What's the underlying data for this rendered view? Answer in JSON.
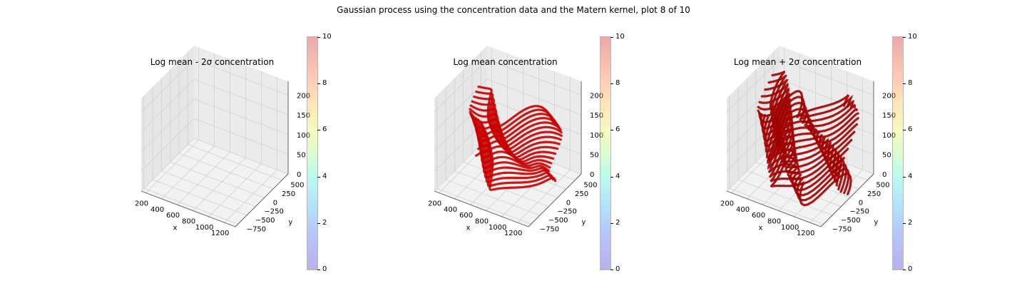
{
  "figure_title": "Gaussian process using the  concentration data and the Matern kernel, plot 8 of 10",
  "colors": {
    "surface": "#c80000",
    "surface_dark": "#8b0000",
    "pane": "#f0f0f0",
    "grid": "#d0d0d0"
  },
  "chart_data": [
    {
      "type": "scatter3d",
      "title": "Log mean - 2σ concentration",
      "xlabel": "x",
      "ylabel": "y",
      "zlabel": "",
      "xticks": [
        "200",
        "400",
        "600",
        "800",
        "1000",
        "1200"
      ],
      "yticks": [
        "−750",
        "−500",
        "−250",
        "0",
        "250",
        "500"
      ],
      "zticks": [
        "0",
        "50",
        "100",
        "150",
        "200"
      ],
      "colorbar_ticks": [
        "0",
        "2",
        "4",
        "6",
        "8",
        "10"
      ],
      "colorbar_range": [
        0,
        10
      ],
      "surfaces": []
    },
    {
      "type": "scatter3d",
      "title": "Log mean concentration",
      "xlabel": "x",
      "ylabel": "y",
      "zlabel": "",
      "xticks": [
        "200",
        "400",
        "600",
        "800",
        "1000",
        "1200"
      ],
      "yticks": [
        "−750",
        "−500",
        "−250",
        "0",
        "250",
        "500"
      ],
      "zticks": [
        "0",
        "50",
        "100",
        "150",
        "200"
      ],
      "colorbar_ticks": [
        "0",
        "2",
        "4",
        "6",
        "8",
        "10"
      ],
      "colorbar_range": [
        0,
        10
      ],
      "surfaces": [
        {
          "name": "level-band",
          "z_range": [
            10,
            185
          ],
          "amplitude": 0.12,
          "waves": 3,
          "color": "#c80000"
        }
      ]
    },
    {
      "type": "scatter3d",
      "title": "Log mean + 2σ concentration",
      "xlabel": "x",
      "ylabel": "y",
      "zlabel": "",
      "xticks": [
        "200",
        "400",
        "600",
        "800",
        "1000",
        "1200"
      ],
      "yticks": [
        "−750",
        "−500",
        "−250",
        "0",
        "250",
        "500"
      ],
      "zticks": [
        "0",
        "50",
        "100",
        "150",
        "200"
      ],
      "colorbar_ticks": [
        "0",
        "2",
        "4",
        "6",
        "8",
        "10"
      ],
      "colorbar_range": [
        0,
        10
      ],
      "surfaces": [
        {
          "name": "level-band",
          "z_range": [
            0,
            210
          ],
          "amplitude": 0.2,
          "waves": 5,
          "color": "#a00000"
        }
      ]
    }
  ]
}
